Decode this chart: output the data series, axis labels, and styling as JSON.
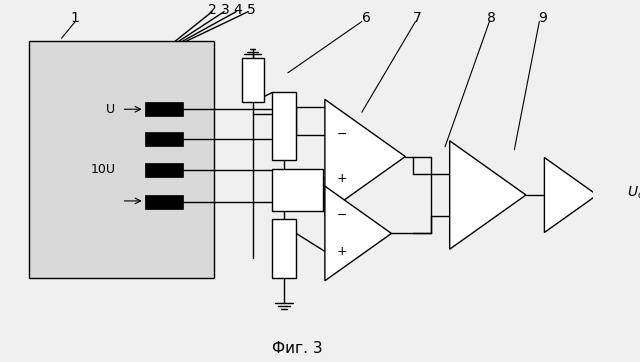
{
  "fig_size": [
    6.4,
    3.62
  ],
  "dpi": 100,
  "bg_color": "#f0f0f0",
  "box1_fc": "#d8d8d8",
  "white": "#ffffff",
  "black": "#000000",
  "title": "Фиг. 3"
}
